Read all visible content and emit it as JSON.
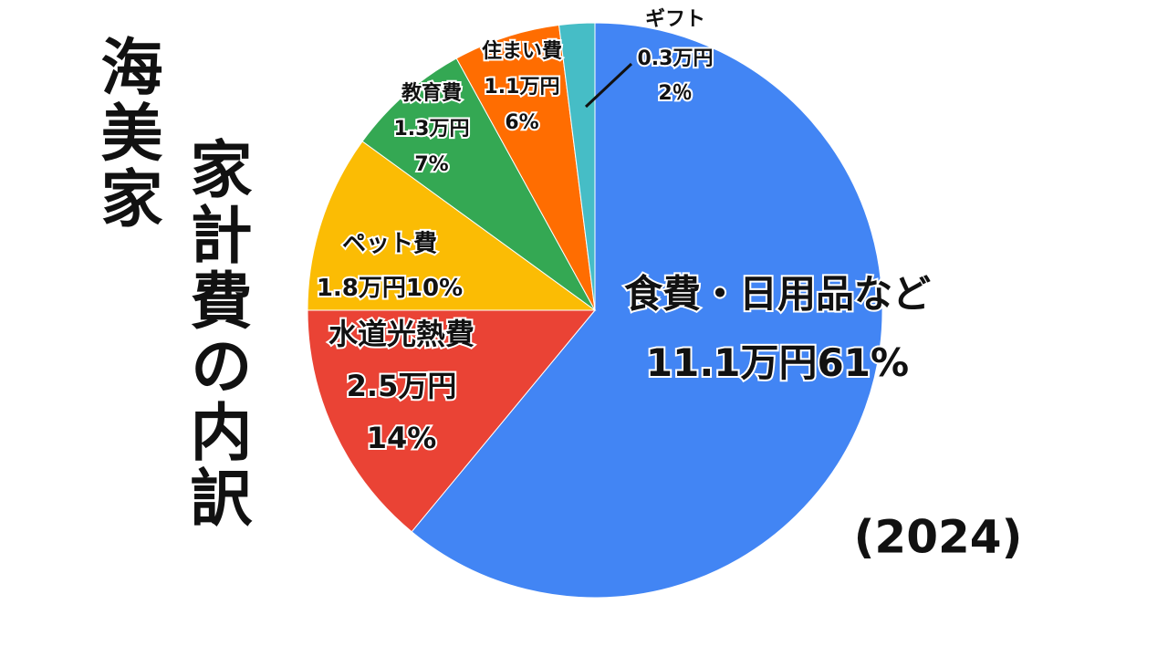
{
  "chart_data": {
    "type": "pie",
    "title": "海美家",
    "subtitle": "家計費の内訳",
    "annotation": "(2024)",
    "categories": [
      "食費・日用品など",
      "水道光熱費",
      "ペット費",
      "教育費",
      "住まい費",
      "ギフト"
    ],
    "amount_labels": [
      "11.1万円",
      "2.5万円",
      "1.8万円",
      "1.3万円",
      "1.1万円",
      "0.3万円"
    ],
    "values": [
      61,
      14,
      10,
      7,
      6,
      2
    ],
    "value_labels": [
      "61%",
      "14%",
      "10%",
      "7%",
      "6%",
      "2％"
    ],
    "colors": [
      "#4285f4",
      "#ea4335",
      "#fbbc04",
      "#34a853",
      "#ff6d01",
      "#46bdc6"
    ]
  }
}
